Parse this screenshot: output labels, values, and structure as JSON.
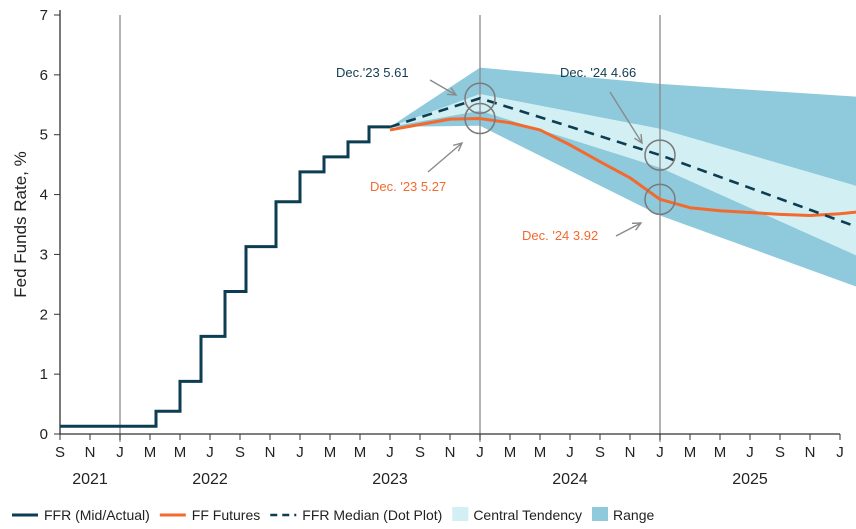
{
  "chart_data": {
    "type": "line",
    "title": "",
    "ylabel": "Fed Funds Rate, %",
    "xlabel": "",
    "ylim": [
      0,
      7
    ],
    "yticks": [
      0,
      1,
      2,
      3,
      4,
      5,
      6,
      7
    ],
    "month_ticks": [
      "S",
      "N",
      "J",
      "M",
      "M",
      "J",
      "S",
      "N",
      "J",
      "M",
      "M",
      "J",
      "S",
      "N",
      "J",
      "M",
      "M",
      "J",
      "S",
      "N",
      "J",
      "M",
      "M",
      "J",
      "S",
      "N",
      "J"
    ],
    "years": [
      {
        "label": "2021",
        "center": 1.0
      },
      {
        "label": "2022",
        "center": 5.0
      },
      {
        "label": "2023",
        "center": 11.0
      },
      {
        "label": "2024",
        "center": 17.0
      },
      {
        "label": "2025",
        "center": 23.0
      }
    ],
    "year_dividers": [
      2,
      14,
      20
    ],
    "x_unit_note": "index of bimonthly tick, 0 = Sep 2021",
    "series": [
      {
        "name": "FFR (Mid/Actual)",
        "color": "#0d3d52",
        "style": "step",
        "x": [
          0,
          3.2,
          3.2,
          4.0,
          4.0,
          4.7,
          4.7,
          5.5,
          5.5,
          6.2,
          6.2,
          7.2,
          7.2,
          8.0,
          8.0,
          8.8,
          8.8,
          9.6,
          9.6,
          10.3,
          10.3,
          11.0
        ],
        "y": [
          0.13,
          0.13,
          0.38,
          0.38,
          0.88,
          0.88,
          1.63,
          1.63,
          2.38,
          2.38,
          3.13,
          3.13,
          3.88,
          3.88,
          4.38,
          4.38,
          4.63,
          4.63,
          4.88,
          4.88,
          5.13,
          5.13
        ]
      },
      {
        "name": "FF Futures",
        "color": "#f26a2e",
        "style": "solid",
        "x": [
          11.0,
          12.0,
          13.0,
          14.0,
          15.0,
          16.0,
          17.0,
          18.0,
          19.0,
          20.0,
          21.0,
          22.0,
          23.0,
          24.0,
          25.0,
          26.0,
          27.0
        ],
        "y": [
          5.08,
          5.17,
          5.26,
          5.27,
          5.2,
          5.08,
          4.83,
          4.55,
          4.28,
          3.92,
          3.78,
          3.73,
          3.7,
          3.67,
          3.65,
          3.68,
          3.73
        ]
      },
      {
        "name": "FFR Median (Dot Plot)",
        "color": "#0d3d52",
        "style": "dashed",
        "x": [
          11.0,
          14.0,
          20.0,
          27.0
        ],
        "y": [
          5.13,
          5.61,
          4.66,
          3.38
        ]
      }
    ],
    "bands": [
      {
        "name": "Range",
        "color": "#8ec9dc",
        "x": [
          11.0,
          14.0,
          20.0,
          27.0
        ],
        "upper": [
          5.13,
          6.12,
          5.85,
          5.62
        ],
        "lower": [
          5.13,
          5.15,
          3.65,
          2.38
        ]
      },
      {
        "name": "Central Tendency",
        "color": "#d2f0f3",
        "x": [
          11.0,
          14.0,
          20.0,
          27.0
        ],
        "upper": [
          5.13,
          5.68,
          5.1,
          4.08
        ],
        "lower": [
          5.13,
          5.4,
          4.45,
          2.88
        ]
      }
    ],
    "annotations": [
      {
        "text": "Dec.'23 5.61",
        "color": "#123d52",
        "x": 14.0,
        "y": 5.61
      },
      {
        "text": "Dec. '24 4.66",
        "color": "#123d52",
        "x": 20.0,
        "y": 4.66
      },
      {
        "text": "Dec. '23 5.27",
        "color": "#f26a2e",
        "x": 14.0,
        "y": 5.27
      },
      {
        "text": "Dec. '24 3.92",
        "color": "#f26a2e",
        "x": 20.0,
        "y": 3.92
      }
    ],
    "legend": {
      "position": "bottom",
      "items": [
        {
          "label": "FFR (Mid/Actual)",
          "kind": "line",
          "color": "#0d3d52"
        },
        {
          "label": "FF Futures",
          "kind": "line",
          "color": "#f26a2e"
        },
        {
          "label": "FFR Median (Dot Plot)",
          "kind": "dash",
          "color": "#0d3d52"
        },
        {
          "label": "Central Tendency",
          "kind": "box",
          "color": "#d2f0f3"
        },
        {
          "label": "Range",
          "kind": "box",
          "color": "#8ec9dc"
        }
      ]
    }
  }
}
